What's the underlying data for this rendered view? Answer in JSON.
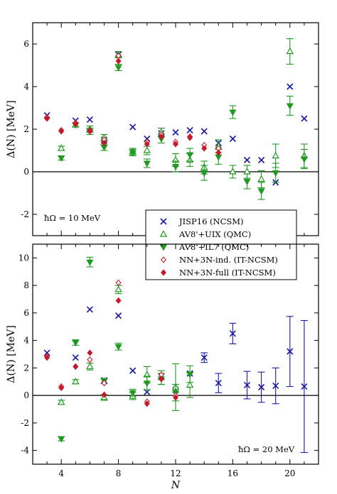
{
  "chart_data": [
    {
      "type": "scatter",
      "panel": "top",
      "ylabel": "Δ(N) [MeV]",
      "xlabel": "",
      "xlim": [
        2,
        22
      ],
      "ylim": [
        -3,
        7
      ],
      "yticks": [
        -2,
        0,
        2,
        4,
        6
      ],
      "annotation": "ħΩ = 10 MeV",
      "legend": "inside, lower right",
      "series": [
        {
          "name": "JISP16 (NCSM)",
          "marker": "x",
          "color": "#1a1aa6",
          "points": [
            {
              "x": 3,
              "y": 2.65
            },
            {
              "x": 5,
              "y": 2.4
            },
            {
              "x": 6,
              "y": 2.45
            },
            {
              "x": 7,
              "y": 1.5
            },
            {
              "x": 8,
              "y": 5.5
            },
            {
              "x": 9,
              "y": 2.1
            },
            {
              "x": 10,
              "y": 1.55
            },
            {
              "x": 11,
              "y": 1.8
            },
            {
              "x": 12,
              "y": 1.85
            },
            {
              "x": 13,
              "y": 1.95
            },
            {
              "x": 14,
              "y": 1.9
            },
            {
              "x": 15,
              "y": 1.35
            },
            {
              "x": 16,
              "y": 1.55
            },
            {
              "x": 17,
              "y": 0.55
            },
            {
              "x": 18,
              "y": 0.55
            },
            {
              "x": 19,
              "y": -0.5
            },
            {
              "x": 20,
              "y": 4.0
            },
            {
              "x": 21,
              "y": 2.5
            }
          ]
        },
        {
          "name": "AV8'+UIX (QMC)",
          "marker": "triangle-up-open",
          "color": "#1f9a1f",
          "points": [
            {
              "x": 4,
              "y": 1.1,
              "err": 0.1
            },
            {
              "x": 5,
              "y": 2.2,
              "err": 0.1
            },
            {
              "x": 6,
              "y": 2.0,
              "err": 0.15
            },
            {
              "x": 7,
              "y": 1.6,
              "err": 0.15
            },
            {
              "x": 8,
              "y": 5.5,
              "err": 0.15
            },
            {
              "x": 9,
              "y": 0.95,
              "err": 0.15
            },
            {
              "x": 10,
              "y": 1.0,
              "err": 0.2
            },
            {
              "x": 11,
              "y": 1.85,
              "err": 0.2
            },
            {
              "x": 12,
              "y": 0.55,
              "err": 0.3
            },
            {
              "x": 13,
              "y": 0.55,
              "err": 0.3
            },
            {
              "x": 14,
              "y": 0.2,
              "err": 0.3
            },
            {
              "x": 15,
              "y": 1.2,
              "err": 0.3
            },
            {
              "x": 16,
              "y": 0.0,
              "err": 0.3
            },
            {
              "x": 17,
              "y": 0.0,
              "err": 0.3
            },
            {
              "x": 18,
              "y": -0.35,
              "err": 0.4
            },
            {
              "x": 19,
              "y": 0.75,
              "err": 0.55
            },
            {
              "x": 20,
              "y": 5.65,
              "err": 0.6
            },
            {
              "x": 21,
              "y": 0.75,
              "err": 0.55
            }
          ]
        },
        {
          "name": "AV8'+IL7 (QMC)",
          "marker": "triangle-down-filled",
          "color": "#1f9a1f",
          "points": [
            {
              "x": 4,
              "y": 0.65,
              "err": 0.1
            },
            {
              "x": 5,
              "y": 2.2,
              "err": 0.1
            },
            {
              "x": 6,
              "y": 1.9,
              "err": 0.15
            },
            {
              "x": 7,
              "y": 1.15,
              "err": 0.15
            },
            {
              "x": 8,
              "y": 4.9,
              "err": 0.15
            },
            {
              "x": 9,
              "y": 0.9,
              "err": 0.15
            },
            {
              "x": 10,
              "y": 0.4,
              "err": 0.2
            },
            {
              "x": 11,
              "y": 1.55,
              "err": 0.2
            },
            {
              "x": 12,
              "y": 0.25,
              "err": 0.25
            },
            {
              "x": 13,
              "y": 0.8,
              "err": 0.3
            },
            {
              "x": 14,
              "y": -0.05,
              "err": 0.35
            },
            {
              "x": 15,
              "y": 0.7,
              "err": 0.35
            },
            {
              "x": 16,
              "y": 2.8,
              "err": 0.3
            },
            {
              "x": 17,
              "y": -0.45,
              "err": 0.35
            },
            {
              "x": 18,
              "y": -0.9,
              "err": 0.4
            },
            {
              "x": 19,
              "y": -0.05,
              "err": 0.45
            },
            {
              "x": 20,
              "y": 3.1,
              "err": 0.45
            },
            {
              "x": 21,
              "y": 0.6,
              "err": 0.45
            }
          ]
        },
        {
          "name": "NN+3N-ind. (IT-NCSM)",
          "marker": "diamond-open",
          "color": "#c41a2c",
          "points": [
            {
              "x": 3,
              "y": 2.55
            },
            {
              "x": 4,
              "y": 1.95
            },
            {
              "x": 5,
              "y": 2.3
            },
            {
              "x": 6,
              "y": 1.95
            },
            {
              "x": 7,
              "y": 1.5
            },
            {
              "x": 8,
              "y": 5.45
            },
            {
              "x": 10,
              "y": 1.4
            },
            {
              "x": 11,
              "y": 1.75
            },
            {
              "x": 12,
              "y": 1.4
            },
            {
              "x": 13,
              "y": 1.65
            },
            {
              "x": 14,
              "y": 1.25
            },
            {
              "x": 15,
              "y": 1.1
            }
          ]
        },
        {
          "name": "NN+3N-full (IT-NCSM)",
          "marker": "diamond-filled",
          "color": "#c41a2c",
          "points": [
            {
              "x": 3,
              "y": 2.5
            },
            {
              "x": 4,
              "y": 1.9
            },
            {
              "x": 5,
              "y": 2.25
            },
            {
              "x": 6,
              "y": 1.9
            },
            {
              "x": 7,
              "y": 1.35
            },
            {
              "x": 8,
              "y": 5.2
            },
            {
              "x": 10,
              "y": 1.3
            },
            {
              "x": 11,
              "y": 1.65
            },
            {
              "x": 12,
              "y": 1.3
            },
            {
              "x": 13,
              "y": 1.6
            },
            {
              "x": 14,
              "y": 1.1
            },
            {
              "x": 15,
              "y": 0.9
            }
          ]
        }
      ]
    },
    {
      "type": "scatter",
      "panel": "bottom",
      "ylabel": "Δ(N) [MeV]",
      "xlabel": "N",
      "xlim": [
        2,
        22
      ],
      "ylim": [
        -5,
        11
      ],
      "yticks": [
        -4,
        -2,
        0,
        2,
        4,
        6,
        8,
        10
      ],
      "xticks": [
        4,
        8,
        12,
        16,
        20
      ],
      "annotation": "ħΩ = 20 MeV",
      "series": [
        {
          "name": "JISP16 (NCSM)",
          "marker": "x",
          "color": "#1a1aa6",
          "points": [
            {
              "x": 3,
              "y": 3.1
            },
            {
              "x": 5,
              "y": 2.75
            },
            {
              "x": 6,
              "y": 6.25
            },
            {
              "x": 7,
              "y": 1.1
            },
            {
              "x": 8,
              "y": 5.8
            },
            {
              "x": 9,
              "y": 1.8
            },
            {
              "x": 10,
              "y": 0.25
            },
            {
              "x": 11,
              "y": 1.4
            },
            {
              "x": 12,
              "y": 0.4
            },
            {
              "x": 13,
              "y": 1.6
            },
            {
              "x": 14,
              "y": 2.75,
              "err": 0.35
            },
            {
              "x": 15,
              "y": 0.9,
              "err": 0.7
            },
            {
              "x": 16,
              "y": 4.5,
              "err": 0.75
            },
            {
              "x": 17,
              "y": 0.75,
              "err": 1.0
            },
            {
              "x": 18,
              "y": 0.6,
              "err": 1.1
            },
            {
              "x": 19,
              "y": 0.7,
              "err": 1.3
            },
            {
              "x": 20,
              "y": 3.2,
              "err": 2.55
            },
            {
              "x": 21,
              "y": 0.65,
              "err": 4.8
            }
          ]
        },
        {
          "name": "AV8'+UIX (QMC)",
          "marker": "triangle-up-open",
          "color": "#1f9a1f",
          "points": [
            {
              "x": 4,
              "y": -0.5,
              "err": 0.15
            },
            {
              "x": 5,
              "y": 1.0,
              "err": 0.15
            },
            {
              "x": 6,
              "y": 2.1,
              "err": 0.25
            },
            {
              "x": 7,
              "y": -0.15,
              "err": 0.2
            },
            {
              "x": 8,
              "y": 7.7,
              "err": 0.3
            },
            {
              "x": 9,
              "y": -0.05,
              "err": 0.25
            },
            {
              "x": 10,
              "y": 1.5,
              "err": 0.6
            },
            {
              "x": 11,
              "y": 1.3,
              "err": 0.5
            },
            {
              "x": 12,
              "y": 0.6,
              "err": 1.7
            },
            {
              "x": 13,
              "y": 0.75,
              "err": 0.9
            }
          ]
        },
        {
          "name": "AV8'+IL7 (QMC)",
          "marker": "triangle-down-filled",
          "color": "#1f9a1f",
          "points": [
            {
              "x": 4,
              "y": -3.15,
              "err": 0.15
            },
            {
              "x": 5,
              "y": 3.85,
              "err": 0.2
            },
            {
              "x": 6,
              "y": 9.7,
              "err": 0.35
            },
            {
              "x": 7,
              "y": 1.05,
              "err": 0.2
            },
            {
              "x": 8,
              "y": 3.55,
              "err": 0.25
            },
            {
              "x": 9,
              "y": 0.2,
              "err": 0.25
            },
            {
              "x": 10,
              "y": 0.9,
              "err": 0.5
            },
            {
              "x": 11,
              "y": 1.2,
              "err": 0.4
            },
            {
              "x": 12,
              "y": 0.2,
              "err": 0.6
            },
            {
              "x": 13,
              "y": 1.55,
              "err": 0.6
            }
          ]
        },
        {
          "name": "NN+3N-ind. (IT-NCSM)",
          "marker": "diamond-open",
          "color": "#c41a2c",
          "points": [
            {
              "x": 3,
              "y": 2.85
            },
            {
              "x": 4,
              "y": 0.65
            },
            {
              "x": 5,
              "y": 2.1
            },
            {
              "x": 6,
              "y": 2.6
            },
            {
              "x": 7,
              "y": 0.9
            },
            {
              "x": 8,
              "y": 8.2
            },
            {
              "x": 10,
              "y": -0.45
            },
            {
              "x": 11,
              "y": 1.5
            },
            {
              "x": 12,
              "y": 0.0
            }
          ]
        },
        {
          "name": "NN+3N-full (IT-NCSM)",
          "marker": "diamond-filled",
          "color": "#c41a2c",
          "points": [
            {
              "x": 3,
              "y": 2.75
            },
            {
              "x": 4,
              "y": 0.55
            },
            {
              "x": 5,
              "y": 2.1
            },
            {
              "x": 6,
              "y": 3.1
            },
            {
              "x": 7,
              "y": 0.05
            },
            {
              "x": 8,
              "y": 6.9
            },
            {
              "x": 10,
              "y": -0.6
            },
            {
              "x": 11,
              "y": 1.2
            },
            {
              "x": 12,
              "y": -0.15
            }
          ]
        }
      ]
    }
  ],
  "legend_entries": [
    "JISP16 (NCSM)",
    "AV8'+UIX (QMC)",
    "AV8'+IL7 (QMC)",
    "NN+3N-ind. (IT-NCSM)",
    "NN+3N-full (IT-NCSM)"
  ],
  "colors": {
    "blue": "#1a1aa6",
    "green": "#1f9a1f",
    "red": "#c41a2c"
  }
}
